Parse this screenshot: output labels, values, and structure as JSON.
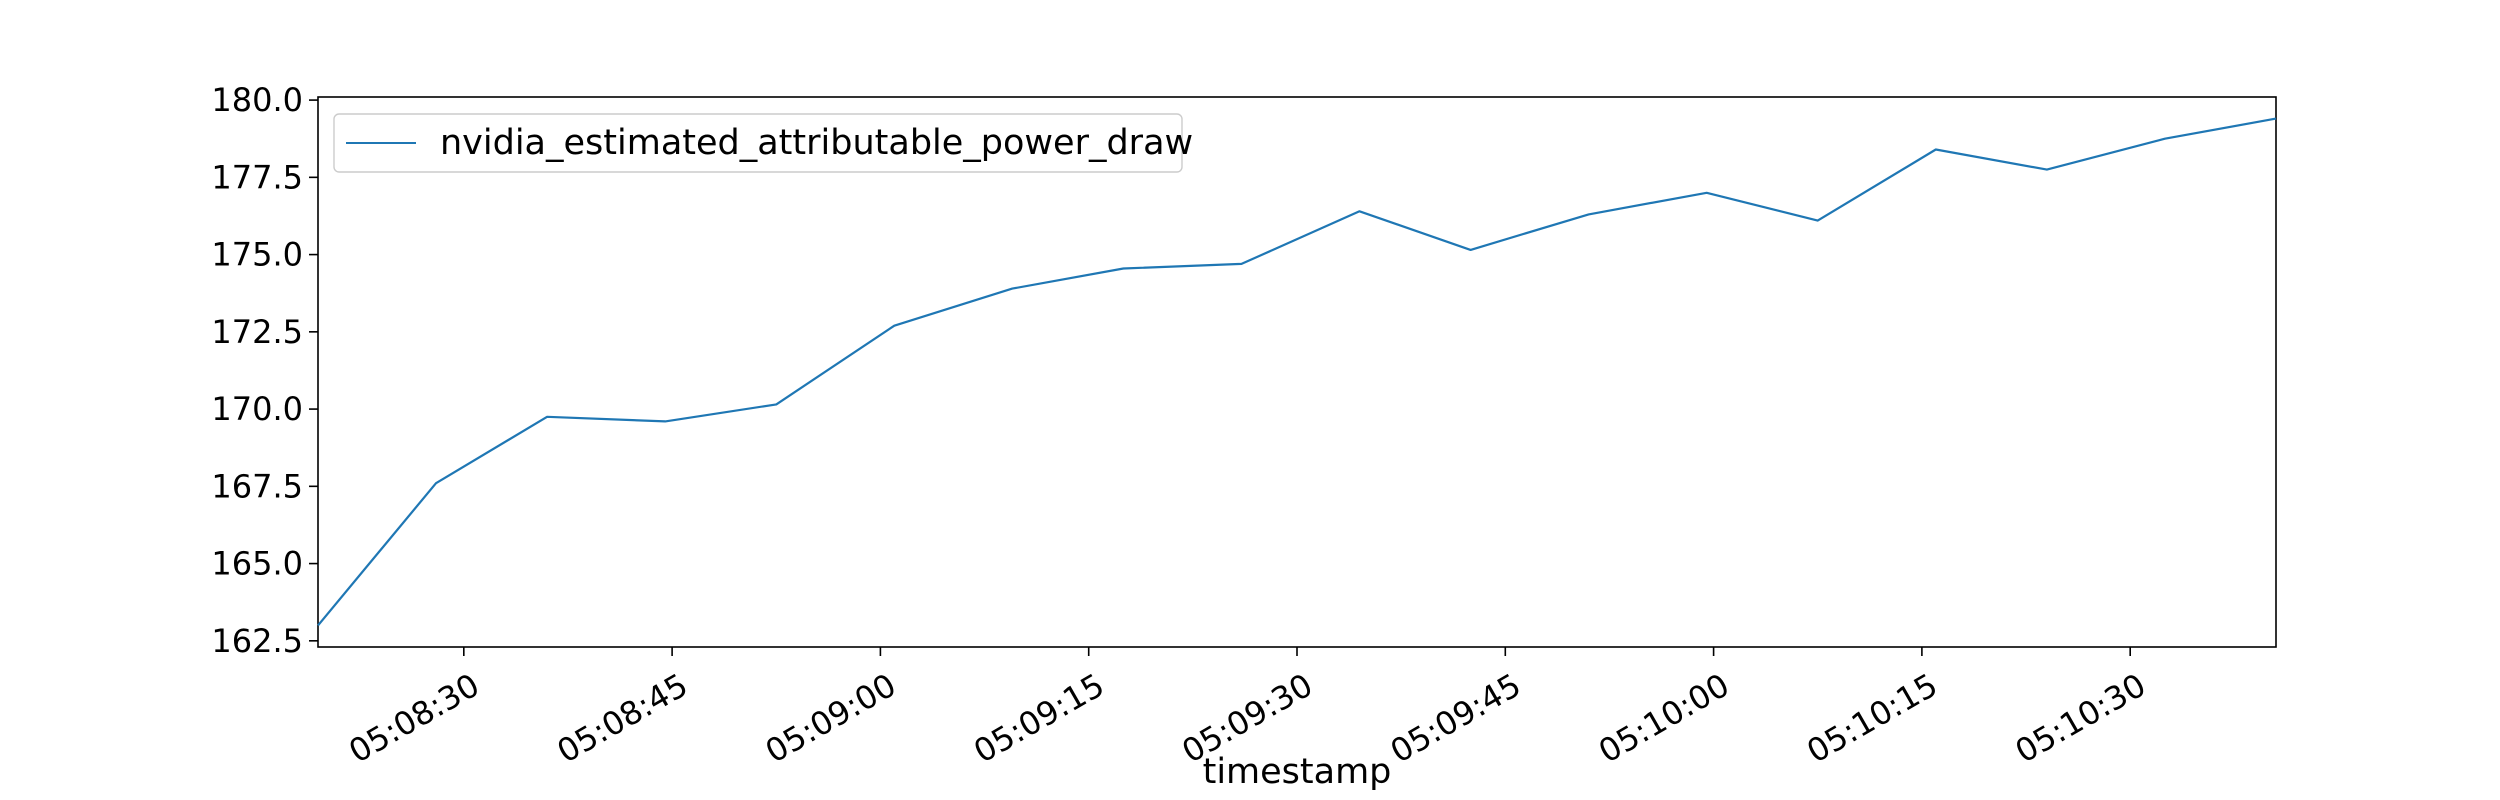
{
  "chart_data": {
    "type": "line",
    "title": "",
    "xlabel": "timestamp",
    "ylabel": "",
    "x_ticks": [
      "05:08:30",
      "05:08:45",
      "05:09:00",
      "05:09:15",
      "05:09:30",
      "05:09:45",
      "05:10:00",
      "05:10:15",
      "05:10:30"
    ],
    "y_ticks": [
      "162.5",
      "165.0",
      "167.5",
      "170.0",
      "172.5",
      "175.0",
      "177.5",
      "180.0"
    ],
    "xlim": [
      "05:08:19.5",
      "05:10:40.5"
    ],
    "ylim": [
      162.3,
      180.1
    ],
    "grid": false,
    "legend_position": "top-left",
    "series": [
      {
        "name": "nvidia_estimated_attributable_power_draw",
        "color": "#1f77b4",
        "x": [
          "05:08:19.5",
          "05:08:28",
          "05:08:36",
          "05:08:44.5",
          "05:08:52.5",
          "05:09:01",
          "05:09:09.5",
          "05:09:17.5",
          "05:09:26",
          "05:09:34.5",
          "05:09:42.5",
          "05:09:51",
          "05:09:59.5",
          "05:10:07.5",
          "05:10:16",
          "05:10:24",
          "05:10:32.5",
          "05:10:40.5"
        ],
        "values": [
          163.0,
          167.6,
          169.75,
          169.6,
          170.15,
          172.7,
          173.9,
          174.55,
          174.7,
          176.4,
          175.15,
          176.3,
          177.0,
          176.1,
          178.4,
          177.75,
          178.75,
          179.4
        ]
      }
    ]
  }
}
